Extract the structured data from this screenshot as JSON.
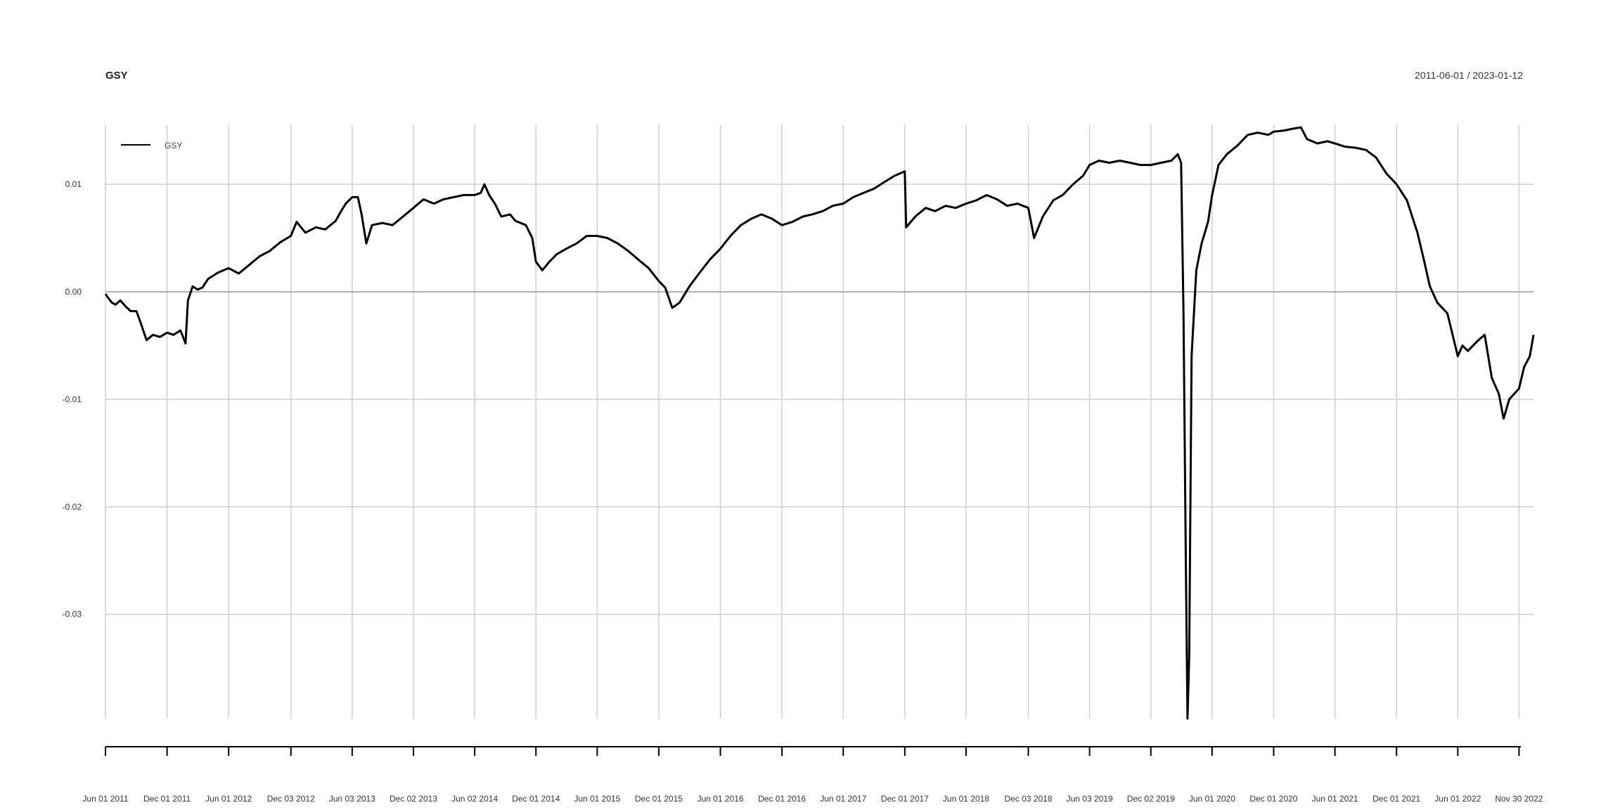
{
  "chart_data": {
    "type": "line",
    "title": "GSY",
    "date_range": "2011-06-01 / 2023-01-12",
    "xlabel": "",
    "ylabel": "",
    "legend": {
      "position": "top-left",
      "entries": [
        "GSY"
      ]
    },
    "grid": true,
    "ylim": [
      -0.0397,
      0.0155
    ],
    "xlim": [
      "2011-06-01",
      "2023-01-12"
    ],
    "y_ticks": [
      {
        "value": 0.01,
        "label": "0.01"
      },
      {
        "value": 0.0,
        "label": "0.00"
      },
      {
        "value": -0.01,
        "label": "-0.01"
      },
      {
        "value": -0.02,
        "label": "-0.02"
      },
      {
        "value": -0.03,
        "label": "-0.03"
      }
    ],
    "x_ticks": [
      {
        "date": "2011-06-01",
        "label": "Jun 01 2011"
      },
      {
        "date": "2011-12-01",
        "label": "Dec 01 2011"
      },
      {
        "date": "2012-06-01",
        "label": "Jun 01 2012"
      },
      {
        "date": "2012-12-03",
        "label": "Dec 03 2012"
      },
      {
        "date": "2013-06-03",
        "label": "Jun 03 2013"
      },
      {
        "date": "2013-12-02",
        "label": "Dec 02 2013"
      },
      {
        "date": "2014-06-02",
        "label": "Jun 02 2014"
      },
      {
        "date": "2014-12-01",
        "label": "Dec 01 2014"
      },
      {
        "date": "2015-06-01",
        "label": "Jun 01 2015"
      },
      {
        "date": "2015-12-01",
        "label": "Dec 01 2015"
      },
      {
        "date": "2016-06-01",
        "label": "Jun 01 2016"
      },
      {
        "date": "2016-12-01",
        "label": "Dec 01 2016"
      },
      {
        "date": "2017-06-01",
        "label": "Jun 01 2017"
      },
      {
        "date": "2017-12-01",
        "label": "Dec 01 2017"
      },
      {
        "date": "2018-06-01",
        "label": "Jun 01 2018"
      },
      {
        "date": "2018-12-03",
        "label": "Dec 03 2018"
      },
      {
        "date": "2019-06-03",
        "label": "Jun 03 2019"
      },
      {
        "date": "2019-12-02",
        "label": "Dec 02 2019"
      },
      {
        "date": "2020-06-01",
        "label": "Jun 01 2020"
      },
      {
        "date": "2020-12-01",
        "label": "Dec 01 2020"
      },
      {
        "date": "2021-06-01",
        "label": "Jun 01 2021"
      },
      {
        "date": "2021-12-01",
        "label": "Dec 01 2021"
      },
      {
        "date": "2022-06-01",
        "label": "Jun 01 2022"
      },
      {
        "date": "2022-11-30",
        "label": "Nov 30 2022"
      }
    ],
    "series": [
      {
        "name": "GSY",
        "color": "#000000",
        "points": [
          [
            "2011-06-01",
            -0.0002
          ],
          [
            "2011-06-10",
            -0.0006
          ],
          [
            "2011-06-20",
            -0.001
          ],
          [
            "2011-07-01",
            -0.0012
          ],
          [
            "2011-07-15",
            -0.0008
          ],
          [
            "2011-08-01",
            -0.0014
          ],
          [
            "2011-08-15",
            -0.0018
          ],
          [
            "2011-09-01",
            -0.0018
          ],
          [
            "2011-09-15",
            -0.003
          ],
          [
            "2011-10-01",
            -0.0045
          ],
          [
            "2011-10-20",
            -0.004
          ],
          [
            "2011-11-10",
            -0.0042
          ],
          [
            "2011-12-01",
            -0.0038
          ],
          [
            "2011-12-20",
            -0.004
          ],
          [
            "2012-01-10",
            -0.0036
          ],
          [
            "2012-01-25",
            -0.0048
          ],
          [
            "2012-02-01",
            -0.0008
          ],
          [
            "2012-02-15",
            0.0005
          ],
          [
            "2012-03-01",
            0.0002
          ],
          [
            "2012-03-15",
            0.0004
          ],
          [
            "2012-04-01",
            0.0012
          ],
          [
            "2012-05-01",
            0.0018
          ],
          [
            "2012-06-01",
            0.0022
          ],
          [
            "2012-07-01",
            0.0017
          ],
          [
            "2012-08-01",
            0.0025
          ],
          [
            "2012-09-01",
            0.0033
          ],
          [
            "2012-10-01",
            0.0038
          ],
          [
            "2012-11-01",
            0.0046
          ],
          [
            "2012-12-03",
            0.0052
          ],
          [
            "2012-12-20",
            0.0065
          ],
          [
            "2013-01-15",
            0.0055
          ],
          [
            "2013-02-15",
            0.006
          ],
          [
            "2013-03-15",
            0.0058
          ],
          [
            "2013-04-15",
            0.0066
          ],
          [
            "2013-05-01",
            0.0075
          ],
          [
            "2013-05-15",
            0.0082
          ],
          [
            "2013-06-03",
            0.0088
          ],
          [
            "2013-06-20",
            0.0088
          ],
          [
            "2013-07-01",
            0.0072
          ],
          [
            "2013-07-15",
            0.0045
          ],
          [
            "2013-08-01",
            0.0062
          ],
          [
            "2013-09-01",
            0.0064
          ],
          [
            "2013-10-01",
            0.0062
          ],
          [
            "2013-11-01",
            0.007
          ],
          [
            "2013-12-02",
            0.0078
          ],
          [
            "2014-01-01",
            0.0086
          ],
          [
            "2014-02-01",
            0.0082
          ],
          [
            "2014-03-01",
            0.0086
          ],
          [
            "2014-04-01",
            0.0088
          ],
          [
            "2014-05-01",
            0.009
          ],
          [
            "2014-06-02",
            0.009
          ],
          [
            "2014-06-20",
            0.0092
          ],
          [
            "2014-07-01",
            0.01
          ],
          [
            "2014-07-15",
            0.009
          ],
          [
            "2014-08-01",
            0.0082
          ],
          [
            "2014-08-20",
            0.007
          ],
          [
            "2014-09-15",
            0.0072
          ],
          [
            "2014-10-01",
            0.0066
          ],
          [
            "2014-11-01",
            0.0062
          ],
          [
            "2014-11-20",
            0.005
          ],
          [
            "2014-12-01",
            0.0028
          ],
          [
            "2014-12-20",
            0.002
          ],
          [
            "2015-01-10",
            0.0028
          ],
          [
            "2015-02-01",
            0.0035
          ],
          [
            "2015-03-01",
            0.004
          ],
          [
            "2015-04-01",
            0.0045
          ],
          [
            "2015-05-01",
            0.0052
          ],
          [
            "2015-06-01",
            0.0052
          ],
          [
            "2015-07-01",
            0.005
          ],
          [
            "2015-08-01",
            0.0045
          ],
          [
            "2015-09-01",
            0.0038
          ],
          [
            "2015-10-01",
            0.003
          ],
          [
            "2015-11-01",
            0.0022
          ],
          [
            "2015-12-01",
            0.001
          ],
          [
            "2015-12-20",
            0.0004
          ],
          [
            "2016-01-10",
            -0.0015
          ],
          [
            "2016-02-01",
            -0.001
          ],
          [
            "2016-03-01",
            0.0005
          ],
          [
            "2016-04-01",
            0.0018
          ],
          [
            "2016-05-01",
            0.003
          ],
          [
            "2016-06-01",
            0.004
          ],
          [
            "2016-07-01",
            0.0052
          ],
          [
            "2016-08-01",
            0.0062
          ],
          [
            "2016-09-01",
            0.0068
          ],
          [
            "2016-10-01",
            0.0072
          ],
          [
            "2016-11-01",
            0.0068
          ],
          [
            "2016-12-01",
            0.0062
          ],
          [
            "2017-01-01",
            0.0065
          ],
          [
            "2017-02-01",
            0.007
          ],
          [
            "2017-03-01",
            0.0072
          ],
          [
            "2017-04-01",
            0.0075
          ],
          [
            "2017-05-01",
            0.008
          ],
          [
            "2017-06-01",
            0.0082
          ],
          [
            "2017-07-01",
            0.0088
          ],
          [
            "2017-08-01",
            0.0092
          ],
          [
            "2017-09-01",
            0.0096
          ],
          [
            "2017-10-01",
            0.0102
          ],
          [
            "2017-11-01",
            0.0108
          ],
          [
            "2017-12-01",
            0.0112
          ],
          [
            "2017-12-05",
            0.006
          ],
          [
            "2018-01-01",
            0.007
          ],
          [
            "2018-02-01",
            0.0078
          ],
          [
            "2018-03-01",
            0.0075
          ],
          [
            "2018-04-01",
            0.008
          ],
          [
            "2018-05-01",
            0.0078
          ],
          [
            "2018-06-01",
            0.0082
          ],
          [
            "2018-07-01",
            0.0085
          ],
          [
            "2018-08-01",
            0.009
          ],
          [
            "2018-09-01",
            0.0086
          ],
          [
            "2018-10-01",
            0.008
          ],
          [
            "2018-11-01",
            0.0082
          ],
          [
            "2018-12-03",
            0.0078
          ],
          [
            "2018-12-20",
            0.005
          ],
          [
            "2019-01-15",
            0.007
          ],
          [
            "2019-02-15",
            0.0085
          ],
          [
            "2019-03-15",
            0.009
          ],
          [
            "2019-04-15",
            0.01
          ],
          [
            "2019-05-15",
            0.0108
          ],
          [
            "2019-06-03",
            0.0118
          ],
          [
            "2019-07-01",
            0.0122
          ],
          [
            "2019-08-01",
            0.012
          ],
          [
            "2019-09-01",
            0.0122
          ],
          [
            "2019-10-01",
            0.012
          ],
          [
            "2019-11-01",
            0.0118
          ],
          [
            "2019-12-02",
            0.0118
          ],
          [
            "2020-01-01",
            0.012
          ],
          [
            "2020-02-01",
            0.0122
          ],
          [
            "2020-02-20",
            0.0128
          ],
          [
            "2020-03-01",
            0.012
          ],
          [
            "2020-03-08",
            -0.002
          ],
          [
            "2020-03-15",
            -0.025
          ],
          [
            "2020-03-20",
            -0.0397
          ],
          [
            "2020-03-25",
            -0.034
          ],
          [
            "2020-04-01",
            -0.006
          ],
          [
            "2020-04-15",
            0.002
          ],
          [
            "2020-05-01",
            0.0045
          ],
          [
            "2020-05-20",
            0.0065
          ],
          [
            "2020-06-01",
            0.009
          ],
          [
            "2020-06-20",
            0.0118
          ],
          [
            "2020-07-15",
            0.0128
          ],
          [
            "2020-08-15",
            0.0136
          ],
          [
            "2020-09-15",
            0.0146
          ],
          [
            "2020-10-15",
            0.0148
          ],
          [
            "2020-11-15",
            0.0146
          ],
          [
            "2020-12-01",
            0.0149
          ],
          [
            "2021-01-01",
            0.015
          ],
          [
            "2021-02-01",
            0.0152
          ],
          [
            "2021-02-20",
            0.0153
          ],
          [
            "2021-03-10",
            0.0142
          ],
          [
            "2021-04-10",
            0.0138
          ],
          [
            "2021-05-10",
            0.014
          ],
          [
            "2021-06-01",
            0.0138
          ],
          [
            "2021-07-01",
            0.0135
          ],
          [
            "2021-08-01",
            0.0134
          ],
          [
            "2021-09-01",
            0.0132
          ],
          [
            "2021-10-01",
            0.0125
          ],
          [
            "2021-11-01",
            0.011
          ],
          [
            "2021-12-01",
            0.01
          ],
          [
            "2022-01-01",
            0.0085
          ],
          [
            "2022-02-01",
            0.0055
          ],
          [
            "2022-02-20",
            0.003
          ],
          [
            "2022-03-10",
            0.0005
          ],
          [
            "2022-04-01",
            -0.001
          ],
          [
            "2022-05-01",
            -0.002
          ],
          [
            "2022-06-01",
            -0.006
          ],
          [
            "2022-06-15",
            -0.005
          ],
          [
            "2022-07-01",
            -0.0055
          ],
          [
            "2022-08-01",
            -0.0045
          ],
          [
            "2022-08-20",
            -0.004
          ],
          [
            "2022-09-10",
            -0.008
          ],
          [
            "2022-10-01",
            -0.0095
          ],
          [
            "2022-10-15",
            -0.0118
          ],
          [
            "2022-11-01",
            -0.01
          ],
          [
            "2022-11-30",
            -0.009
          ],
          [
            "2022-12-15",
            -0.007
          ],
          [
            "2023-01-01",
            -0.006
          ],
          [
            "2023-01-12",
            -0.004
          ]
        ]
      }
    ]
  }
}
